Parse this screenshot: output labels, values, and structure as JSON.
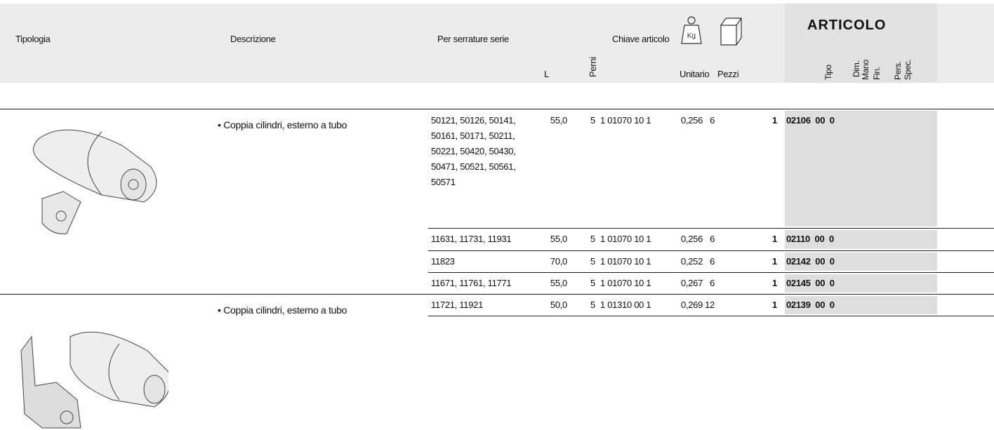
{
  "header": {
    "tipologia": "Tipologia",
    "descrizione": "Descrizione",
    "serie": "Per serrature serie",
    "chiave": "Chiave articolo",
    "kg": "Kg",
    "l": "L",
    "perni": "Perni",
    "unitario": "Unitario",
    "pezzi": "Pezzi",
    "articolo": "ARTICOLO",
    "sub": [
      "Tipo",
      "Dim.",
      "Mano",
      "Fin.",
      "Pers.",
      "Spec."
    ]
  },
  "groups": [
    {
      "descrizione": "• Coppia cilindri, esterno a tubo",
      "rows": [
        {
          "serie": [
            "50121, 50126, 50141,",
            "50161, 50171, 50211,",
            "50221, 50420, 50430,",
            "50471, 50521, 50561,",
            "50571"
          ],
          "l": "55,0",
          "perni": "5",
          "chiave": "1 01070 10 1",
          "unitario": "0,256",
          "pezzi": "6",
          "prefix": "1",
          "articolo": "02106  00  0"
        },
        {
          "serie": [
            "11631, 11731, 11931"
          ],
          "l": "55,0",
          "perni": "5",
          "chiave": "1 01070 10 1",
          "unitario": "0,256",
          "pezzi": "6",
          "prefix": "1",
          "articolo": "02110  00  0"
        },
        {
          "serie": [
            "11823"
          ],
          "l": "70,0",
          "perni": "5",
          "chiave": "1 01070 10 1",
          "unitario": "0,252",
          "pezzi": "6",
          "prefix": "1",
          "articolo": "02142  00  0"
        },
        {
          "serie": [
            "11671, 11761, 11771"
          ],
          "l": "55,0",
          "perni": "5",
          "chiave": "1 01070 10 1",
          "unitario": "0,267",
          "pezzi": "6",
          "prefix": "1",
          "articolo": "02145  00  0"
        }
      ]
    },
    {
      "descrizione": "• Coppia cilindri, esterno a tubo",
      "rows": [
        {
          "serie": [
            "11721, 11921"
          ],
          "l": "50,0",
          "perni": "5",
          "chiave": "1 01310 00 1",
          "unitario": "0,269",
          "pezzi": "12",
          "prefix": "1",
          "articolo": "02139  00  0"
        }
      ]
    }
  ]
}
